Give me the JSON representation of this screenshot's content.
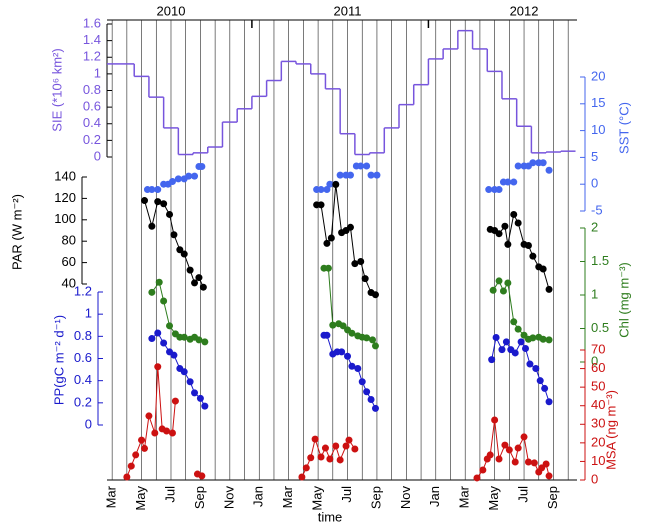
{
  "chart_data": {
    "type": "line",
    "xlabel": "time",
    "xlim": [
      -0.35,
      31.6
    ],
    "xticks": [
      {
        "value": 0,
        "label": "Mar"
      },
      {
        "value": 1,
        "label": null
      },
      {
        "value": 2,
        "label": "May"
      },
      {
        "value": 3,
        "label": null
      },
      {
        "value": 4,
        "label": "Jul"
      },
      {
        "value": 5,
        "label": null
      },
      {
        "value": 6,
        "label": "Sep"
      },
      {
        "value": 7,
        "label": null
      },
      {
        "value": 8,
        "label": "Nov"
      },
      {
        "value": 9,
        "label": null
      },
      {
        "value": 10,
        "label": "Jan"
      },
      {
        "value": 11,
        "label": null
      },
      {
        "value": 12,
        "label": "Mar"
      },
      {
        "value": 13,
        "label": null
      },
      {
        "value": 14,
        "label": "May"
      },
      {
        "value": 15,
        "label": null
      },
      {
        "value": 16,
        "label": "Jul"
      },
      {
        "value": 17,
        "label": null
      },
      {
        "value": 18,
        "label": "Sep"
      },
      {
        "value": 19,
        "label": null
      },
      {
        "value": 20,
        "label": "Nov"
      },
      {
        "value": 21,
        "label": null
      },
      {
        "value": 22,
        "label": "Jan"
      },
      {
        "value": 23,
        "label": null
      },
      {
        "value": 24,
        "label": "Mar"
      },
      {
        "value": 25,
        "label": null
      },
      {
        "value": 26,
        "label": "May"
      },
      {
        "value": 27,
        "label": null
      },
      {
        "value": 28,
        "label": "Jul"
      },
      {
        "value": 29,
        "label": null
      },
      {
        "value": 30,
        "label": "Sep"
      },
      {
        "value": 31,
        "label": null
      }
    ],
    "year_labels": [
      {
        "value": 4,
        "label": "2010"
      },
      {
        "value": 16,
        "label": "2011"
      },
      {
        "value": 28,
        "label": "2012"
      }
    ],
    "year_boundaries": [
      9.5,
      21.5
    ],
    "axes": [
      {
        "label": "SIE (*10⁶ km²)",
        "color": "#7755dd",
        "style": "step",
        "ylim": [
          0,
          1.6
        ],
        "yticks": [
          0,
          0.2,
          0.4,
          0.6,
          0.8,
          1,
          1.2,
          1.4,
          1.6
        ],
        "series": [
          {
            "x": [
              0,
              1,
              2,
              3,
              4,
              5,
              6,
              7,
              8,
              9,
              10,
              11,
              12,
              13,
              14,
              15,
              16,
              17,
              18,
              19,
              20,
              21,
              22,
              23,
              24,
              25,
              26,
              27,
              28,
              29,
              30,
              31
            ],
            "values": [
              1.12,
              1.12,
              0.97,
              0.72,
              0.35,
              0.03,
              0.05,
              0.12,
              0.42,
              0.58,
              0.73,
              0.92,
              1.15,
              1.12,
              1.0,
              0.82,
              0.28,
              0.03,
              0.05,
              0.35,
              0.63,
              0.87,
              1.18,
              1.3,
              1.52,
              1.3,
              1.03,
              0.7,
              0.37,
              0.05,
              0.06,
              0.07
            ]
          }
        ]
      },
      {
        "label": "SST (°C)",
        "color": "#4466ee",
        "style": "points",
        "ylim": [
          -5,
          20
        ],
        "yticks": [
          -5,
          0,
          5,
          10,
          15,
          20
        ],
        "series": [
          {
            "x": [
              2.4,
              2.7,
              3.1,
              3.5,
              3.8,
              4.1,
              4.5,
              4.9,
              5.2,
              5.6,
              5.9,
              6.1
            ],
            "values": [
              -1,
              -1,
              -1,
              0,
              0,
              0.5,
              1,
              1,
              1.5,
              1.5,
              3.3,
              3.3
            ]
          },
          {
            "x": [
              13.9,
              14.2,
              14.6,
              14.8,
              15.2,
              15.5,
              15.9,
              16.2,
              16.6,
              16.9,
              17.3,
              17.6,
              18.0
            ],
            "values": [
              -1,
              -1,
              -1,
              0,
              0,
              1.7,
              1.7,
              1.7,
              3.4,
              3.4,
              3.4,
              1.7,
              1.7
            ]
          },
          {
            "x": [
              25.6,
              26.0,
              26.3,
              26.6,
              26.9,
              27.3,
              27.6,
              28.0,
              28.3,
              28.6,
              29.0,
              29.3,
              29.7
            ],
            "values": [
              -1,
              -1,
              -1,
              0.4,
              0.4,
              0.4,
              3.4,
              3.4,
              3.4,
              4,
              4,
              4,
              2.6
            ]
          }
        ]
      },
      {
        "label": "PAR (W m⁻²)",
        "color": "#000000",
        "style": "line",
        "ylim": [
          40,
          140
        ],
        "yticks": [
          40,
          60,
          80,
          100,
          120,
          140
        ],
        "series": [
          {
            "x": [
              2.2,
              2.7,
              3.1,
              3.5,
              3.9,
              4.2,
              4.6,
              4.9,
              5.3,
              5.6,
              5.9,
              6.2
            ],
            "values": [
              118,
              94,
              117,
              115,
              105,
              86,
              72,
              68,
              53,
              41,
              46,
              37
            ]
          },
          {
            "x": [
              13.9,
              14.2,
              14.6,
              14.9,
              15.2,
              15.6,
              15.9,
              16.2,
              16.5,
              16.9,
              17.2,
              17.6,
              17.9
            ],
            "values": [
              114,
              114,
              78,
              83,
              133,
              88,
              90,
              93,
              59,
              61,
              45,
              32,
              30
            ]
          },
          {
            "x": [
              25.7,
              26.0,
              26.3,
              26.7,
              26.9,
              27.3,
              27.6,
              28.0,
              28.3,
              28.6,
              29.0,
              29.3,
              29.7
            ],
            "values": [
              91,
              90,
              87,
              94,
              77,
              105,
              97,
              77,
              76,
              66,
              56,
              54,
              35
            ]
          }
        ]
      },
      {
        "label": "Chl (mg m⁻³)",
        "color": "#2e7d1e",
        "style": "line",
        "ylim": [
          0,
          2
        ],
        "yticks": [
          0,
          0.5,
          1,
          1.5,
          2
        ],
        "series": [
          {
            "x": [
              2.7,
              3.2,
              3.5,
              3.9,
              4.3,
              4.6,
              4.9,
              5.3,
              5.6,
              5.9,
              6.3
            ],
            "values": [
              1.04,
              1.19,
              0.91,
              0.54,
              0.42,
              0.37,
              0.37,
              0.34,
              0.37,
              0.33,
              0.3
            ]
          },
          {
            "x": [
              14.4,
              14.7,
              15.0,
              15.4,
              15.7,
              16.0,
              16.3,
              16.7,
              17.0,
              17.3,
              17.7,
              17.9
            ],
            "values": [
              1.4,
              1.4,
              0.55,
              0.57,
              0.54,
              0.48,
              0.43,
              0.39,
              0.37,
              0.36,
              0.33,
              0.24
            ]
          },
          {
            "x": [
              25.9,
              26.3,
              26.6,
              26.9,
              27.3,
              27.6,
              28.0,
              28.3,
              28.6,
              29.0,
              29.3,
              29.7
            ],
            "values": [
              1.07,
              1.21,
              1.06,
              1.18,
              0.6,
              0.49,
              0.4,
              0.34,
              0.36,
              0.37,
              0.34,
              0.33
            ]
          }
        ]
      },
      {
        "label": "PP(gC m⁻² d⁻¹)",
        "color": "#1a1acc",
        "style": "line",
        "ylim": [
          0,
          1.2
        ],
        "yticks": [
          0,
          0.2,
          0.4,
          0.6,
          0.8,
          1,
          1.2
        ],
        "series": [
          {
            "x": [
              2.7,
              3.1,
              3.5,
              3.9,
              4.2,
              4.6,
              4.9,
              5.3,
              5.6,
              6.0,
              6.3
            ],
            "values": [
              0.78,
              0.83,
              0.74,
              0.66,
              0.63,
              0.51,
              0.48,
              0.39,
              0.29,
              0.24,
              0.17
            ]
          },
          {
            "x": [
              14.4,
              14.6,
              15.0,
              15.3,
              15.6,
              16.0,
              16.3,
              16.7,
              17.0,
              17.3,
              17.6,
              17.9
            ],
            "values": [
              0.81,
              0.81,
              0.64,
              0.66,
              0.66,
              0.62,
              0.53,
              0.51,
              0.39,
              0.3,
              0.23,
              0.15
            ]
          },
          {
            "x": [
              25.8,
              26.1,
              26.5,
              26.8,
              27.1,
              27.4,
              27.8,
              28.1,
              28.4,
              28.8,
              29.1,
              29.4,
              29.7
            ],
            "values": [
              0.59,
              0.79,
              0.68,
              0.75,
              0.68,
              0.65,
              0.75,
              0.69,
              0.55,
              0.51,
              0.4,
              0.33,
              0.21
            ]
          }
        ]
      },
      {
        "label": "MSA (ng m⁻³)",
        "color": "#cc1111",
        "style": "line",
        "ylim": [
          0,
          70
        ],
        "yticks": [
          0,
          10,
          20,
          30,
          40,
          50,
          60,
          70
        ],
        "series": [
          {
            "x": [
              1.0,
              1.3,
              1.6,
              2.0,
              2.2,
              2.5,
              2.9,
              3.1,
              3.4,
              3.7,
              4.1,
              4.3,
              5.0,
              5.8,
              6.1
            ],
            "values": [
              1.6,
              7.5,
              13.5,
              21.5,
              17,
              34.5,
              25.3,
              61,
              27.5,
              26.4,
              25.3,
              42.5,
              null,
              3.2,
              2.2
            ]
          },
          {
            "x": [
              12.9,
              13.2,
              13.5,
              13.8,
              14.2,
              14.5,
              14.8,
              15.2,
              15.5,
              15.9,
              16.1,
              16.5
            ],
            "values": [
              1.6,
              6.5,
              12,
              22,
              12.4,
              17.2,
              11.3,
              18.3,
              10.8,
              18.3,
              21.5,
              16.7
            ]
          },
          {
            "x": [
              24.8,
              25.2,
              25.5,
              25.7,
              26.0,
              26.3,
              26.7,
              27.0,
              27.4,
              27.6,
              28.0,
              28.3,
              28.7,
              29.0,
              29.2,
              29.5,
              29.7
            ],
            "values": [
              1.1,
              5.4,
              11.3,
              13.5,
              32.3,
              11.3,
              18.8,
              16.2,
              9.7,
              17.2,
              23.2,
              9.7,
              9.2,
              4.3,
              6.5,
              8.6,
              2.2
            ]
          }
        ]
      }
    ]
  }
}
